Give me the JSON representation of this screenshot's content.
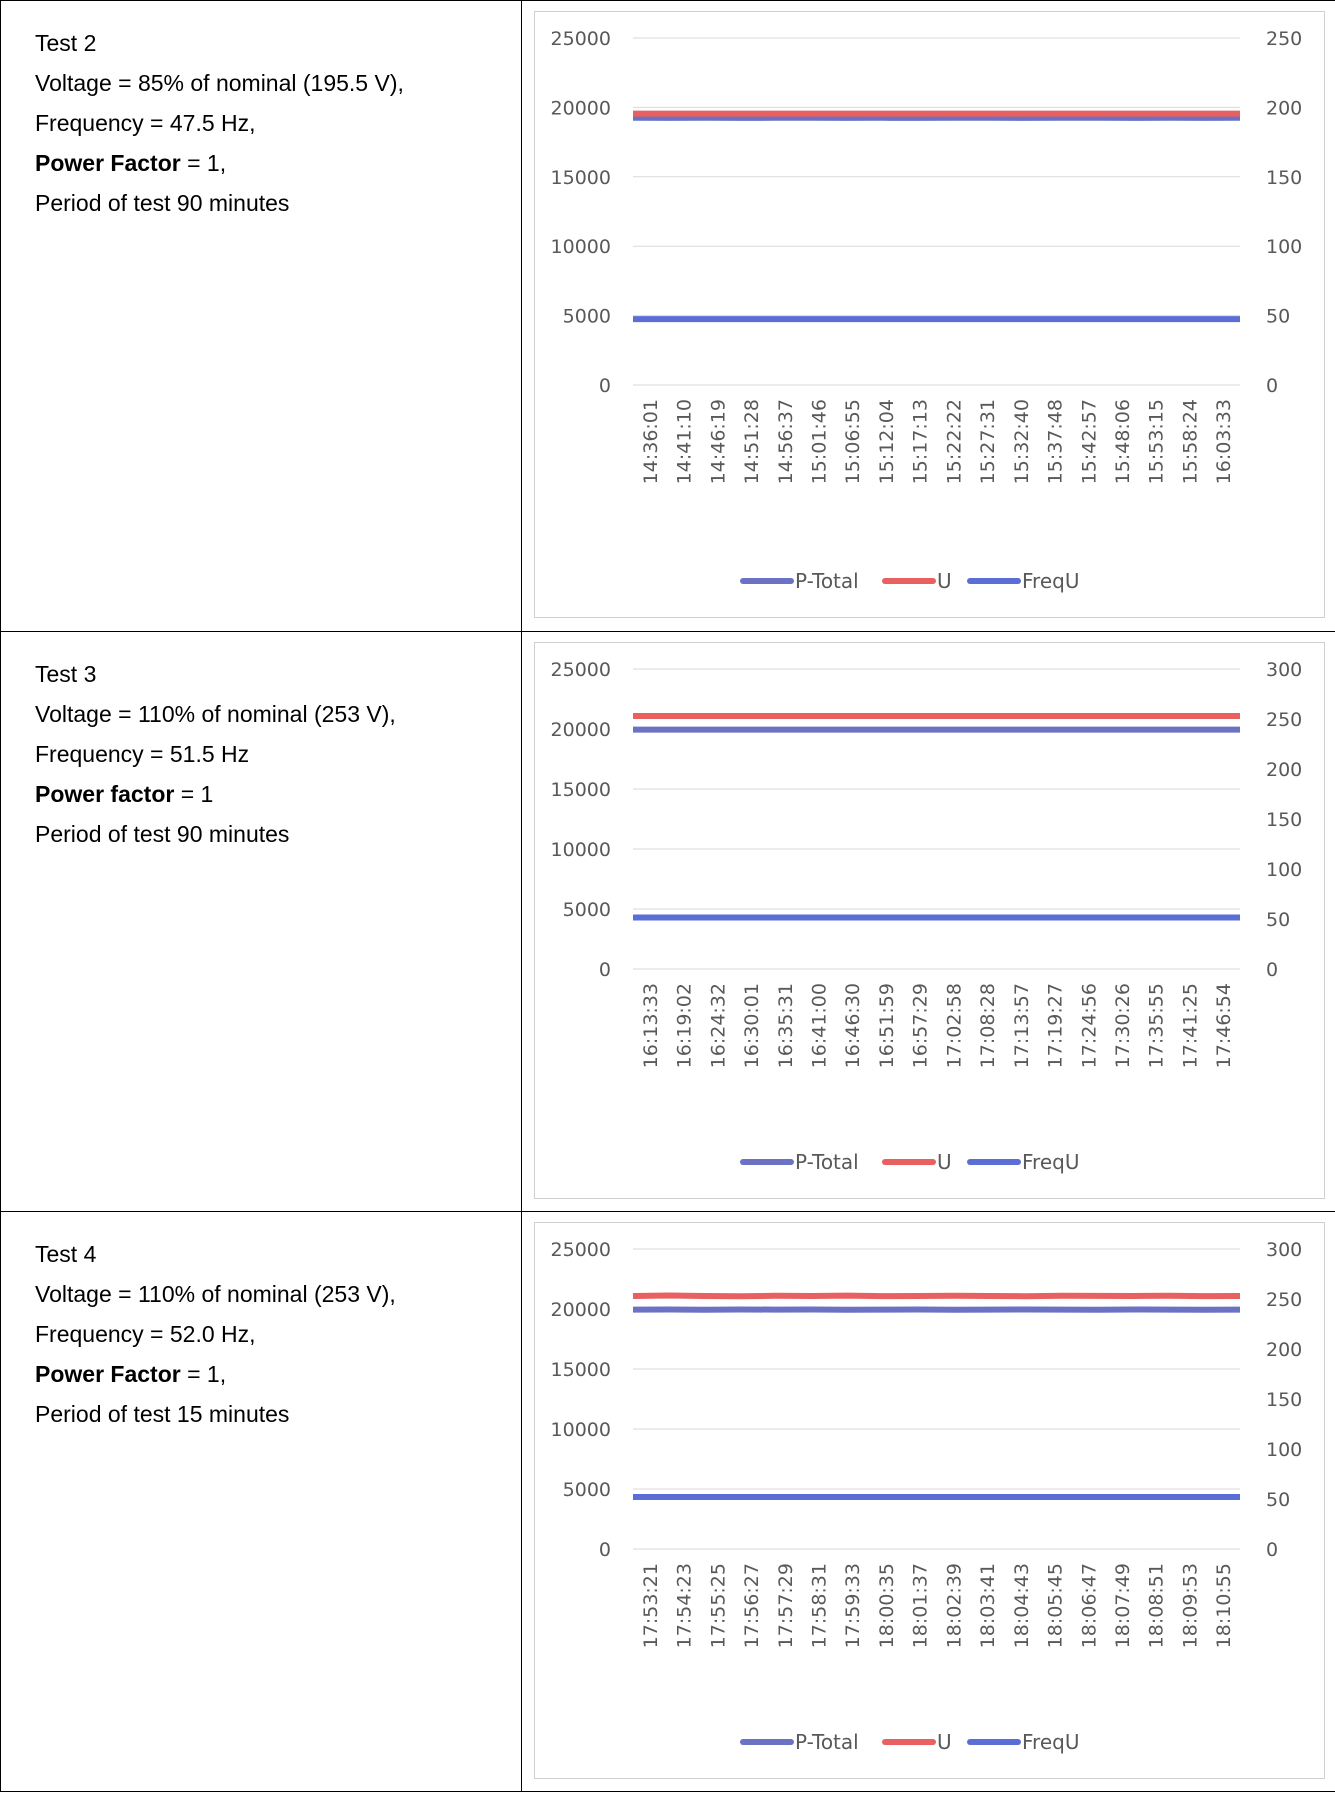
{
  "colors": {
    "p_total": "#6b72c4",
    "u": "#e86060",
    "frequ": "#5b6ed6",
    "grid": "#d9d9d9",
    "axis_text": "#595959"
  },
  "tests": [
    {
      "title": "Test 2",
      "voltage": "Voltage = 85% of nominal (195.5 V),",
      "frequency": "Frequency = 47.5 Hz,",
      "pf_label": "Power Factor",
      "pf_value": " = 1,",
      "period": "Period of test 90 minutes"
    },
    {
      "title": "Test 3",
      "voltage": "Voltage = 110% of nominal (253 V),",
      "frequency": "Frequency = 51.5 Hz",
      "pf_label": "Power factor",
      "pf_value": " = 1",
      "period": "Period of test 90 minutes"
    },
    {
      "title": "Test 4",
      "voltage": "Voltage = 110% of nominal (253 V),",
      "frequency": "Frequency = 52.0 Hz,",
      "pf_label": "Power Factor",
      "pf_value": " = 1,",
      "period": "Period of test 15 minutes"
    }
  ],
  "chart_data": [
    {
      "type": "line",
      "categories": [
        "14:36:01",
        "14:41:10",
        "14:46:19",
        "14:51:28",
        "14:56:37",
        "15:01:46",
        "15:06:55",
        "15:12:04",
        "15:17:13",
        "15:22:22",
        "15:27:31",
        "15:32:40",
        "15:37:48",
        "15:42:57",
        "15:48:06",
        "15:53:15",
        "15:58:24",
        "16:03:33"
      ],
      "ylim": [
        0,
        25000
      ],
      "yticks": [
        0,
        5000,
        10000,
        15000,
        20000,
        25000
      ],
      "y2lim": [
        0,
        250
      ],
      "y2ticks": [
        0,
        50,
        100,
        150,
        200,
        250
      ],
      "legend_position": "bottom",
      "series": [
        {
          "name": "P-Total",
          "axis": "left",
          "values": [
            19250,
            19240,
            19255,
            19245,
            19250,
            19260,
            19245,
            19250,
            19240,
            19255,
            19250,
            19245,
            19250,
            19255,
            19245,
            19250,
            19240,
            19250
          ]
        },
        {
          "name": "U",
          "axis": "right",
          "values": [
            195.5,
            195.5,
            195.5,
            195.5,
            195.5,
            195.5,
            195.5,
            195.5,
            195.5,
            195.5,
            195.5,
            195.5,
            195.5,
            195.5,
            195.5,
            195.5,
            195.5,
            195.5
          ]
        },
        {
          "name": "FreqU",
          "axis": "right",
          "values": [
            47.5,
            47.5,
            47.5,
            47.5,
            47.5,
            47.5,
            47.5,
            47.5,
            47.5,
            47.5,
            47.5,
            47.5,
            47.5,
            47.5,
            47.5,
            47.5,
            47.5,
            47.5
          ]
        }
      ]
    },
    {
      "type": "line",
      "categories": [
        "16:13:33",
        "16:19:02",
        "16:24:32",
        "16:30:01",
        "16:35:31",
        "16:41:00",
        "16:46:30",
        "16:51:59",
        "16:57:29",
        "17:02:58",
        "17:08:28",
        "17:13:57",
        "17:19:27",
        "17:24:56",
        "17:30:26",
        "17:35:55",
        "17:41:25",
        "17:46:54"
      ],
      "ylim": [
        0,
        25000
      ],
      "yticks": [
        0,
        5000,
        10000,
        15000,
        20000,
        25000
      ],
      "y2lim": [
        0,
        300
      ],
      "y2ticks": [
        0,
        50,
        100,
        150,
        200,
        250,
        300
      ],
      "legend_position": "bottom",
      "series": [
        {
          "name": "P-Total",
          "axis": "left",
          "values": [
            19950,
            19950,
            19950,
            19950,
            19950,
            19950,
            19950,
            19950,
            19950,
            19950,
            19950,
            19950,
            19950,
            19950,
            19950,
            19950,
            19950,
            19950
          ]
        },
        {
          "name": "U",
          "axis": "right",
          "values": [
            253,
            253,
            253,
            253,
            253,
            253,
            253,
            253,
            253,
            253,
            253,
            253,
            253,
            253,
            253,
            253,
            253,
            253
          ]
        },
        {
          "name": "FreqU",
          "axis": "right",
          "values": [
            51.5,
            51.5,
            51.5,
            51.5,
            51.5,
            51.5,
            51.5,
            51.5,
            51.5,
            51.5,
            51.5,
            51.5,
            51.5,
            51.5,
            51.5,
            51.5,
            51.5,
            51.5
          ]
        }
      ]
    },
    {
      "type": "line",
      "categories": [
        "17:53:21",
        "17:54:23",
        "17:55:25",
        "17:56:27",
        "17:57:29",
        "17:58:31",
        "17:59:33",
        "18:00:35",
        "18:01:37",
        "18:02:39",
        "18:03:41",
        "18:04:43",
        "18:05:45",
        "18:06:47",
        "18:07:49",
        "18:08:51",
        "18:09:53",
        "18:10:55"
      ],
      "ylim": [
        0,
        25000
      ],
      "yticks": [
        0,
        5000,
        10000,
        15000,
        20000,
        25000
      ],
      "y2lim": [
        0,
        300
      ],
      "y2ticks": [
        0,
        50,
        100,
        150,
        200,
        250,
        300
      ],
      "legend_position": "bottom",
      "series": [
        {
          "name": "P-Total",
          "axis": "left",
          "values": [
            19950,
            19960,
            19940,
            19955,
            19950,
            19960,
            19945,
            19950,
            19955,
            19945,
            19950,
            19960,
            19950,
            19945,
            19955,
            19950,
            19945,
            19950
          ]
        },
        {
          "name": "U",
          "axis": "right",
          "values": [
            253,
            253.5,
            253,
            252.8,
            253.2,
            253,
            253.4,
            252.9,
            253,
            253.3,
            253,
            252.8,
            253.2,
            253.1,
            253,
            253.3,
            252.9,
            253
          ]
        },
        {
          "name": "FreqU",
          "axis": "right",
          "values": [
            52.0,
            52.0,
            52.0,
            52.0,
            52.0,
            52.0,
            52.0,
            52.0,
            52.0,
            52.0,
            52.0,
            52.0,
            52.0,
            52.0,
            52.0,
            52.0,
            52.0,
            52.0
          ]
        }
      ]
    }
  ]
}
